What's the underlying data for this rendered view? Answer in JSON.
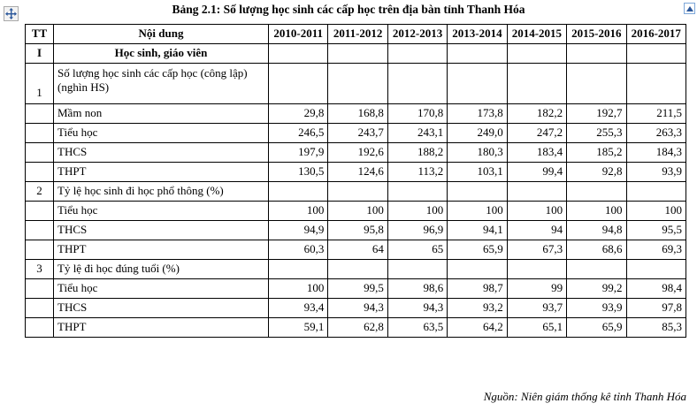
{
  "title": "Bảng 2.1: Số lượng học sinh các cấp học trên địa bàn tỉnh Thanh Hóa",
  "source_note": "Nguồn: Niên giám thống kê tỉnh Thanh Hóa",
  "icons": {
    "move_handle": "move-table-cross",
    "corner_handle": "blue-square-handle"
  },
  "table": {
    "columns": [
      "TT",
      "Nội dung",
      "2010-2011",
      "2011-2012",
      "2012-2013",
      "2013-2014",
      "2014-2015",
      "2015-2016",
      "2016-2017"
    ],
    "rows": [
      {
        "tt": "I",
        "label": "Học sinh, giáo viên",
        "type": "section",
        "double": false,
        "values": [
          "",
          "",
          "",
          "",
          "",
          "",
          ""
        ]
      },
      {
        "tt": "1",
        "label": "Số lượng học sinh các cấp học (công lập) (nghìn HS)",
        "type": "group",
        "double": true,
        "values": [
          "",
          "",
          "",
          "",
          "",
          "",
          ""
        ]
      },
      {
        "tt": "",
        "label": "Mầm non",
        "type": "item",
        "double": false,
        "values": [
          "29,8",
          "168,8",
          "170,8",
          "173,8",
          "182,2",
          "192,7",
          "211,5"
        ]
      },
      {
        "tt": "",
        "label": "Tiểu học",
        "type": "item",
        "double": false,
        "values": [
          "246,5",
          "243,7",
          "243,1",
          "249,0",
          "247,2",
          "255,3",
          "263,3"
        ]
      },
      {
        "tt": "",
        "label": "THCS",
        "type": "item",
        "double": false,
        "values": [
          "197,9",
          "192,6",
          "188,2",
          "180,3",
          "183,4",
          "185,2",
          "184,3"
        ]
      },
      {
        "tt": "",
        "label": "THPT",
        "type": "item",
        "double": false,
        "values": [
          "130,5",
          "124,6",
          "113,2",
          "103,1",
          "99,4",
          "92,8",
          "93,9"
        ]
      },
      {
        "tt": "2",
        "label": "Tỷ lệ học sinh đi học phổ thông (%)",
        "type": "group",
        "double": false,
        "values": [
          "",
          "",
          "",
          "",
          "",
          "",
          ""
        ]
      },
      {
        "tt": "",
        "label": "Tiểu học",
        "type": "item",
        "double": false,
        "values": [
          "100",
          "100",
          "100",
          "100",
          "100",
          "100",
          "100"
        ]
      },
      {
        "tt": "",
        "label": "THCS",
        "type": "item",
        "double": false,
        "values": [
          "94,9",
          "95,8",
          "96,9",
          "94,1",
          "94",
          "94,8",
          "95,5"
        ]
      },
      {
        "tt": "",
        "label": "THPT",
        "type": "item",
        "double": false,
        "values": [
          "60,3",
          "64",
          "65",
          "65,9",
          "67,3",
          "68,6",
          "69,3"
        ]
      },
      {
        "tt": "3",
        "label": "Tỷ lệ đi học đúng tuổi (%)",
        "type": "group",
        "double": false,
        "values": [
          "",
          "",
          "",
          "",
          "",
          "",
          ""
        ]
      },
      {
        "tt": "",
        "label": "Tiểu học",
        "type": "item",
        "double": false,
        "values": [
          "100",
          "99,5",
          "98,6",
          "98,7",
          "99",
          "99,2",
          "98,4"
        ]
      },
      {
        "tt": "",
        "label": "THCS",
        "type": "item",
        "double": false,
        "values": [
          "93,4",
          "94,3",
          "94,3",
          "93,2",
          "93,7",
          "93,9",
          "97,8"
        ]
      },
      {
        "tt": "",
        "label": "THPT",
        "type": "item",
        "double": false,
        "values": [
          "59,1",
          "62,8",
          "63,5",
          "64,2",
          "65,1",
          "65,9",
          "85,3"
        ]
      }
    ]
  }
}
